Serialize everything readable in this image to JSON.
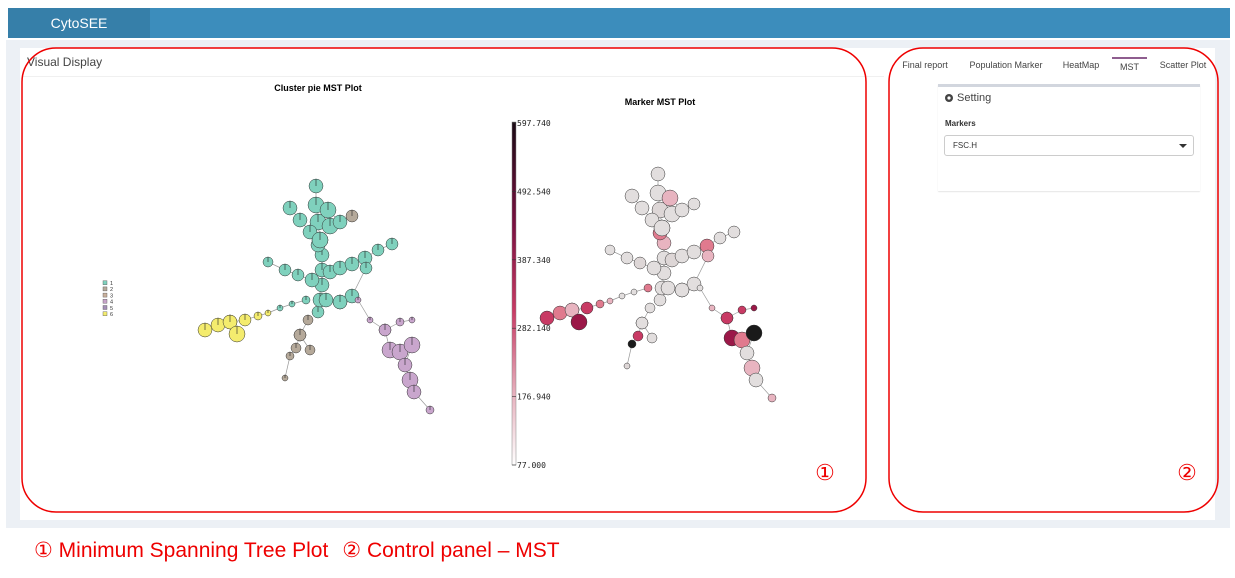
{
  "navbar": {
    "brand": "CytoSEE"
  },
  "main_panel": {
    "title": "Visual Display",
    "pie_plot": {
      "title": "Cluster pie MST Plot",
      "legend": [
        "1",
        "2",
        "3",
        "4",
        "5",
        "6"
      ]
    },
    "marker_plot": {
      "title": "Marker MST Plot",
      "colorbar_ticks": [
        "597.740",
        "492.540",
        "387.340",
        "282.140",
        "176.940",
        "77.000"
      ]
    },
    "callout": "①"
  },
  "side_panel": {
    "tabs": [
      "Final report",
      "Population Marker",
      "HeatMap",
      "MST",
      "Scatter Plot"
    ],
    "active_tab": 3,
    "setting_title": "Setting",
    "markers_label": "Markers",
    "markers_value": "FSC.H",
    "callout": "②"
  },
  "caption": {
    "items": [
      "① Minimum Spanning Tree Plot",
      "② Control panel – MST"
    ]
  }
}
